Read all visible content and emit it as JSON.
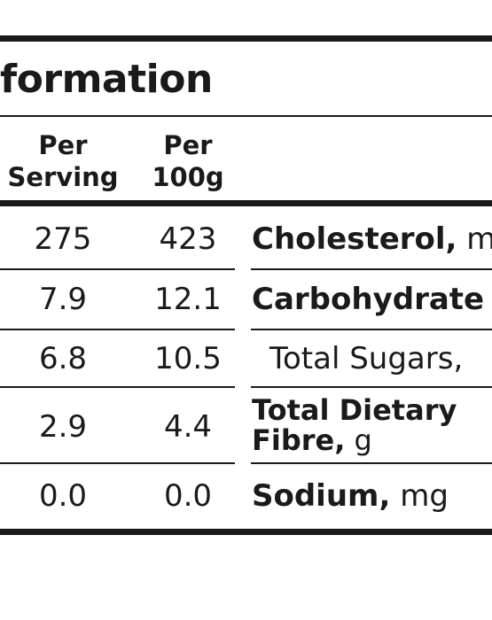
{
  "header": {
    "title": "formation",
    "columns": [
      {
        "line1": "Per",
        "line2": "Serving"
      },
      {
        "line1": "Per",
        "line2": "100g"
      }
    ]
  },
  "rows": [
    {
      "per_serving": "275",
      "per_100g": "423",
      "nutrient": "Cholesterol,",
      "unit": "m"
    },
    {
      "per_serving": "7.9",
      "per_100g": "12.1",
      "nutrient": "Carbohydrate",
      "unit": ""
    },
    {
      "per_serving": "6.8",
      "per_100g": "10.5",
      "nutrient": "Total Sugars,",
      "unit": ""
    },
    {
      "per_serving": "2.9",
      "per_100g": "4.4",
      "nutrient": "Total Dietary",
      "nutrient_line2": "Fibre,",
      "unit": "g"
    },
    {
      "per_serving": "0.0",
      "per_100g": "0.0",
      "nutrient": "Sodium,",
      "unit": "mg"
    }
  ]
}
